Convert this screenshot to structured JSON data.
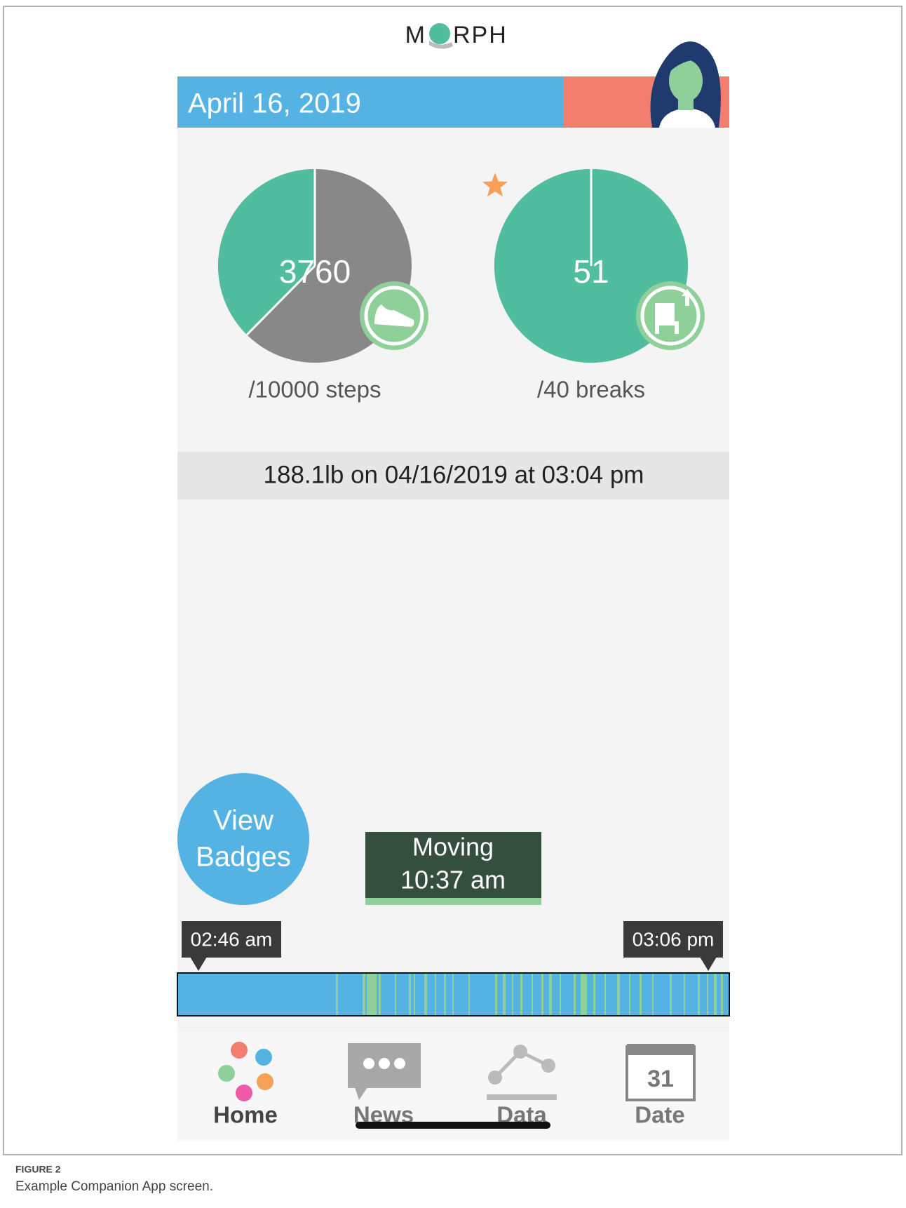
{
  "header": {
    "logo_left": "M",
    "logo_right": "RPH",
    "date": "April 16, 2019"
  },
  "stats": [
    {
      "value": 3760,
      "goal_label": "/10000 steps"
    },
    {
      "value": 51,
      "goal_label": "/40 breaks"
    }
  ],
  "weight": "188.1lb on 04/16/2019 at 03:04 pm",
  "badges_button": {
    "line1": "View",
    "line2": "Badges"
  },
  "activity_popup": {
    "line1": "Moving",
    "line2": "10:37 am"
  },
  "timeline": {
    "start": "02:46 am",
    "end": "03:06 pm"
  },
  "nav": [
    "Home",
    "News",
    "Data",
    "Date"
  ],
  "date_icon": "31",
  "caption": {
    "label": "FIGURE 2",
    "text": "Example Companion App screen."
  }
}
